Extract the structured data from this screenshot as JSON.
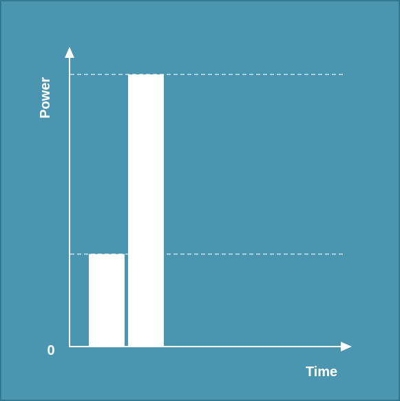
{
  "chart_data": {
    "type": "bar",
    "title": "",
    "xlabel": "Time",
    "ylabel": "Power",
    "y_origin_label": "0",
    "ylim": [
      0,
      1
    ],
    "values": [
      0.34,
      1.0
    ],
    "reference_lines": [
      0.34,
      1.0
    ],
    "grid": false,
    "legend": "none",
    "colors": {
      "background": "#4a95b0",
      "border": "#2f7891",
      "bar": "#ffffff",
      "axis": "#ffffff",
      "reference_line": "#cfe3ea"
    }
  }
}
